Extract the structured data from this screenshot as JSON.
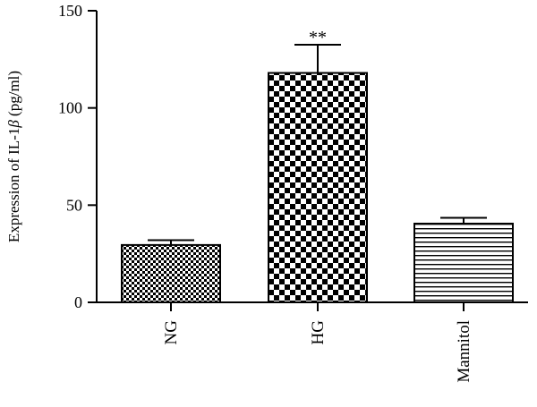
{
  "chart_data": {
    "type": "bar",
    "categories": [
      "NG",
      "HG",
      "Mannitol"
    ],
    "values": [
      29.5,
      118,
      40.5
    ],
    "errors": [
      2.5,
      14.5,
      3
    ],
    "annotations": [
      "",
      "**",
      ""
    ],
    "patterns": [
      "fine-checker",
      "coarse-checker",
      "horizontal-lines"
    ],
    "ylabel_prefix": "Expression of IL-1",
    "ylabel_symbol": "β",
    "ylabel_suffix": " (pg/ml)",
    "xlabel": "",
    "title": "",
    "ylim": [
      0,
      150
    ],
    "yticks": [
      0,
      50,
      100,
      150
    ],
    "grid": false,
    "colors": {
      "ink": "#000000",
      "fill": "#ffffff"
    }
  }
}
